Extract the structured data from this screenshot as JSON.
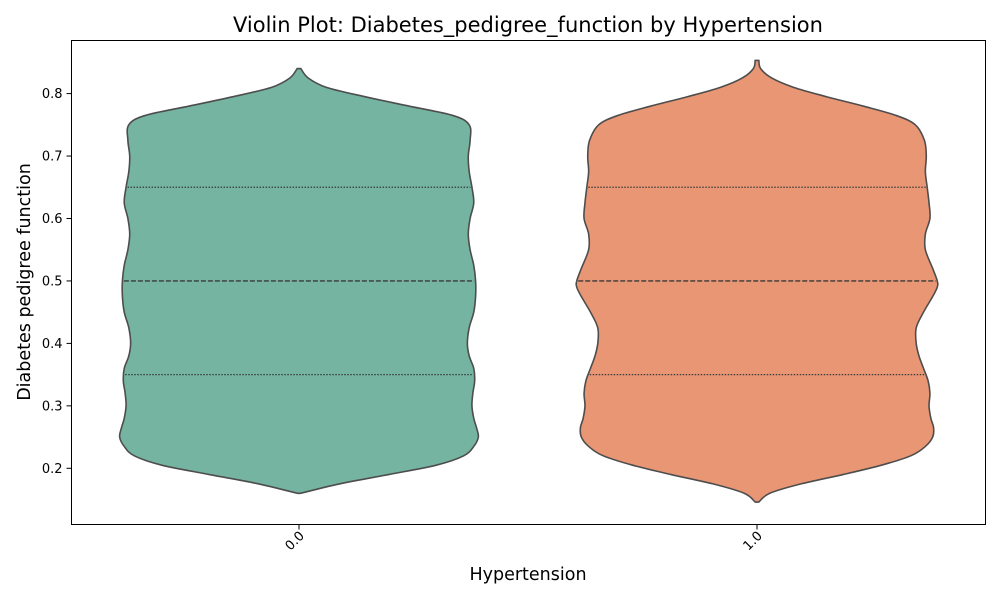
{
  "chart_data": {
    "type": "violin",
    "title": "Violin Plot: Diabetes_pedigree_function by Hypertension",
    "xlabel": "Hypertension",
    "ylabel": "Diabetes pedigree function",
    "categories": [
      "0.0",
      "1.0"
    ],
    "ylim": [
      0.11,
      0.885
    ],
    "yticks": [
      0.2,
      0.3,
      0.4,
      0.5,
      0.6,
      0.7,
      0.8
    ],
    "ytick_labels": [
      "0.2",
      "0.3",
      "0.4",
      "0.5",
      "0.6",
      "0.7",
      "0.8"
    ],
    "grid": false,
    "legend": "none",
    "series": [
      {
        "category": "0.0",
        "color": "#74b4a0",
        "min": 0.16,
        "max": 0.84,
        "quartiles": [
          0.35,
          0.5,
          0.65
        ],
        "density": [
          [
            0.16,
            0.01
          ],
          [
            0.175,
            0.22
          ],
          [
            0.19,
            0.49
          ],
          [
            0.205,
            0.75
          ],
          [
            0.22,
            0.9
          ],
          [
            0.235,
            0.955
          ],
          [
            0.25,
            0.98
          ],
          [
            0.265,
            0.97
          ],
          [
            0.28,
            0.955
          ],
          [
            0.3,
            0.945
          ],
          [
            0.32,
            0.95
          ],
          [
            0.34,
            0.96
          ],
          [
            0.36,
            0.955
          ],
          [
            0.38,
            0.93
          ],
          [
            0.4,
            0.92
          ],
          [
            0.425,
            0.93
          ],
          [
            0.45,
            0.955
          ],
          [
            0.475,
            0.965
          ],
          [
            0.5,
            0.965
          ],
          [
            0.525,
            0.955
          ],
          [
            0.55,
            0.935
          ],
          [
            0.575,
            0.925
          ],
          [
            0.6,
            0.935
          ],
          [
            0.625,
            0.955
          ],
          [
            0.65,
            0.945
          ],
          [
            0.675,
            0.93
          ],
          [
            0.7,
            0.925
          ],
          [
            0.725,
            0.935
          ],
          [
            0.75,
            0.93
          ],
          [
            0.765,
            0.84
          ],
          [
            0.78,
            0.6
          ],
          [
            0.795,
            0.36
          ],
          [
            0.81,
            0.15
          ],
          [
            0.825,
            0.05
          ],
          [
            0.84,
            0.01
          ]
        ]
      },
      {
        "category": "1.0",
        "color": "#e99675",
        "min": 0.146,
        "max": 0.853,
        "quartiles": [
          0.35,
          0.5,
          0.65
        ],
        "density": [
          [
            0.146,
            0.01
          ],
          [
            0.16,
            0.07
          ],
          [
            0.175,
            0.24
          ],
          [
            0.19,
            0.47
          ],
          [
            0.205,
            0.68
          ],
          [
            0.22,
            0.84
          ],
          [
            0.235,
            0.92
          ],
          [
            0.25,
            0.96
          ],
          [
            0.265,
            0.965
          ],
          [
            0.28,
            0.95
          ],
          [
            0.3,
            0.94
          ],
          [
            0.32,
            0.945
          ],
          [
            0.34,
            0.935
          ],
          [
            0.36,
            0.91
          ],
          [
            0.38,
            0.885
          ],
          [
            0.4,
            0.87
          ],
          [
            0.425,
            0.87
          ],
          [
            0.45,
            0.91
          ],
          [
            0.475,
            0.96
          ],
          [
            0.49,
            0.985
          ],
          [
            0.5,
            0.985
          ],
          [
            0.52,
            0.96
          ],
          [
            0.55,
            0.92
          ],
          [
            0.575,
            0.92
          ],
          [
            0.6,
            0.945
          ],
          [
            0.625,
            0.94
          ],
          [
            0.65,
            0.93
          ],
          [
            0.675,
            0.92
          ],
          [
            0.7,
            0.925
          ],
          [
            0.725,
            0.915
          ],
          [
            0.75,
            0.865
          ],
          [
            0.765,
            0.76
          ],
          [
            0.78,
            0.58
          ],
          [
            0.795,
            0.38
          ],
          [
            0.81,
            0.2
          ],
          [
            0.825,
            0.08
          ],
          [
            0.84,
            0.02
          ],
          [
            0.853,
            0.01
          ]
        ]
      }
    ]
  }
}
